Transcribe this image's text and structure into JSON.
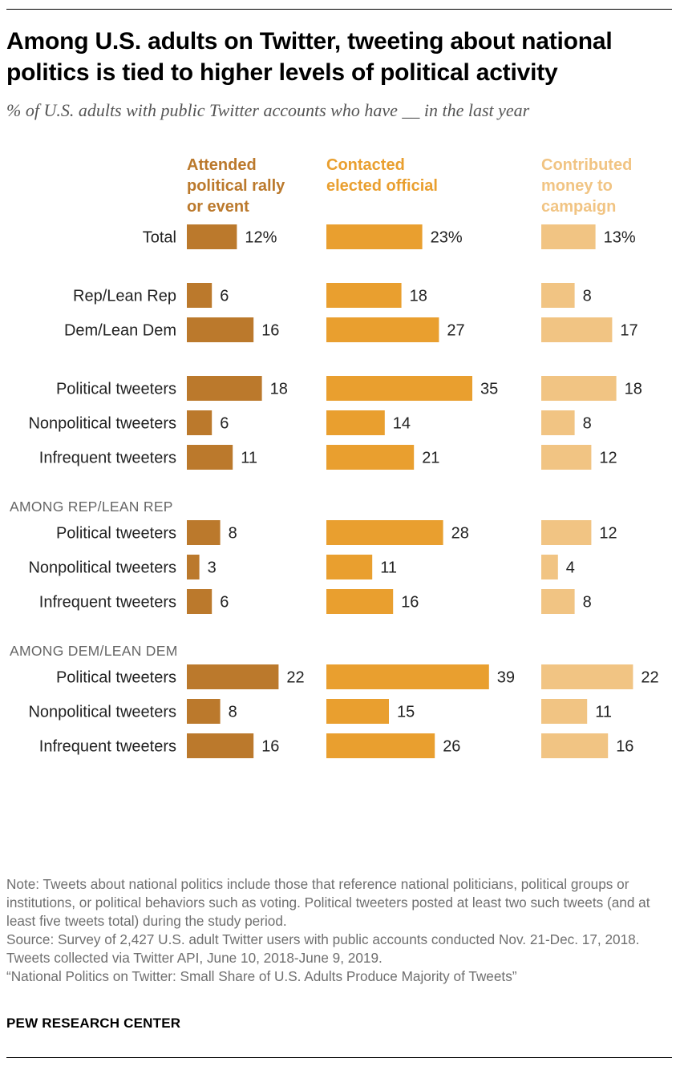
{
  "title": "Among U.S. adults on Twitter, tweeting about national politics is tied to higher levels of political activity",
  "subtitle": "% of U.S. adults with public Twitter accounts who have __ in the last year",
  "colors": {
    "rally": "#bb792c",
    "contacted": "#e99f2f",
    "contributed": "#f1c483"
  },
  "chart_data": {
    "type": "bar",
    "orientation": "horizontal",
    "title": "Among U.S. adults on Twitter, tweeting about national politics is tied to higher levels of political activity",
    "subtitle": "% of U.S. adults with public Twitter accounts who have __ in the last year",
    "series": [
      {
        "key": "rally",
        "name": "Attended political rally or event",
        "name_lines": [
          "Attended",
          "political rally",
          "or event"
        ]
      },
      {
        "key": "contacted",
        "name": "Contacted elected official",
        "name_lines": [
          "Contacted",
          "elected official"
        ]
      },
      {
        "key": "contributed",
        "name": "Contributed money to campaign",
        "name_lines": [
          "Contributed",
          "money to",
          "campaign"
        ]
      }
    ],
    "groups": [
      {
        "heading": "",
        "rows": [
          {
            "label": "Total",
            "values": [
              12,
              23,
              13
            ],
            "percent": true
          }
        ]
      },
      {
        "heading": "",
        "rows": [
          {
            "label": "Rep/Lean Rep",
            "values": [
              6,
              18,
              8
            ]
          },
          {
            "label": "Dem/Lean Dem",
            "values": [
              16,
              27,
              17
            ]
          }
        ]
      },
      {
        "heading": "",
        "rows": [
          {
            "label": "Political tweeters",
            "values": [
              18,
              35,
              18
            ]
          },
          {
            "label": "Nonpolitical tweeters",
            "values": [
              6,
              14,
              8
            ]
          },
          {
            "label": "Infrequent tweeters",
            "values": [
              11,
              21,
              12
            ]
          }
        ]
      },
      {
        "heading": "AMONG REP/LEAN REP",
        "rows": [
          {
            "label": "Political tweeters",
            "values": [
              8,
              28,
              12
            ]
          },
          {
            "label": "Nonpolitical tweeters",
            "values": [
              3,
              11,
              4
            ]
          },
          {
            "label": "Infrequent tweeters",
            "values": [
              6,
              16,
              8
            ]
          }
        ]
      },
      {
        "heading": "AMONG DEM/LEAN DEM",
        "rows": [
          {
            "label": "Political tweeters",
            "values": [
              22,
              39,
              22
            ]
          },
          {
            "label": "Nonpolitical tweeters",
            "values": [
              8,
              15,
              11
            ]
          },
          {
            "label": "Infrequent tweeters",
            "values": [
              16,
              26,
              16
            ]
          }
        ]
      }
    ]
  },
  "notes": {
    "note": "Note: Tweets about national politics include those that reference national politicians, political groups or institutions, or political behaviors such as voting. Political tweeters posted at least two such tweets (and at least five tweets total) during the study period.",
    "source": "Source: Survey of 2,427 U.S. adult Twitter users with public accounts conducted Nov. 21-Dec. 17, 2018. Tweets collected via Twitter API, June 10, 2018-June 9, 2019.",
    "report": "“National Politics on Twitter: Small Share of U.S. Adults Produce Majority of Tweets”"
  },
  "brand": "PEW RESEARCH CENTER"
}
